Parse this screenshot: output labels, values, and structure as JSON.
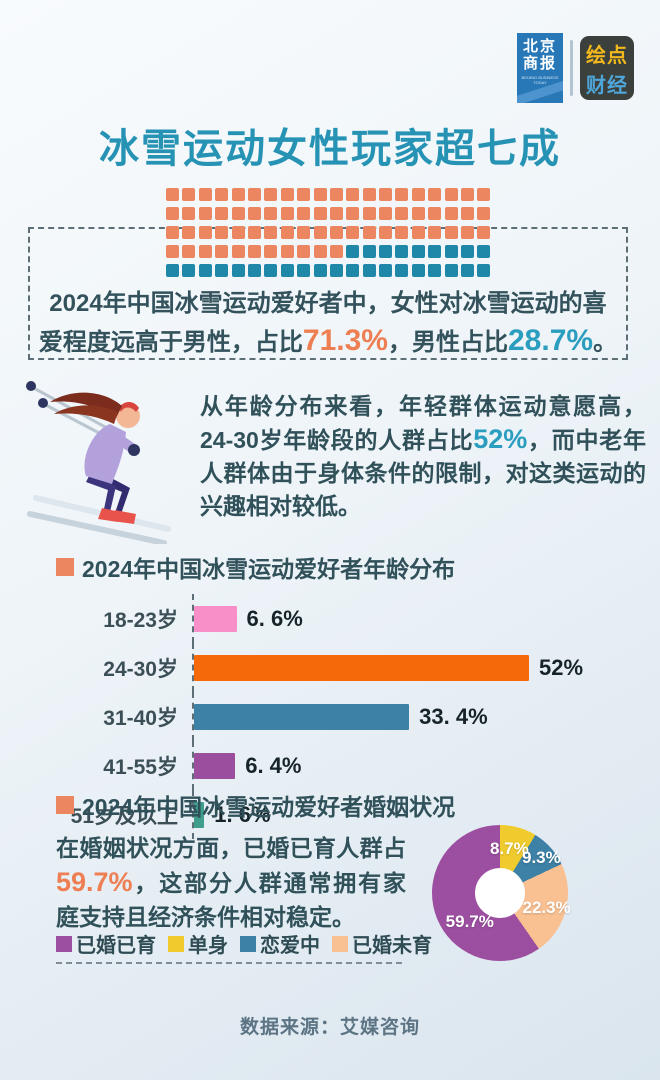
{
  "header": {
    "logo_beijing": {
      "line1": "北京",
      "line2": "商报",
      "caption": "BEIJING BUSINESS TODAY"
    },
    "logo_huidian": {
      "line1": "绘点",
      "line2": "财经"
    }
  },
  "title": "冰雪运动女性玩家超七成",
  "gender_section": {
    "line1": "2024年中国冰雪运动爱好者中，女性对冰雪运动的喜",
    "line2_pre": "爱程度远高于男性，占比",
    "female_value": "71.3%",
    "line2_mid": "，男性占比",
    "male_value": "28.7%",
    "line2_end": "。"
  },
  "age_section": {
    "para_pre": "从年龄分布来看，年轻群体运动意愿高，24-30岁年龄段的人群占比",
    "highlight": "52%",
    "para_post": "，而中老年人群体由于身体条件的限制，对这类运动的兴趣相对较低。"
  },
  "marriage_section": {
    "para_pre": "在婚姻状况方面，已婚已育人群占",
    "highlight": "59.7%",
    "para_post": "，这部分人群通常拥有家庭支持且经济条件相对稳定。",
    "legend": [
      {
        "label": "已婚已育",
        "color": "#9c4fa0"
      },
      {
        "label": "单身",
        "color": "#f0cb2d"
      },
      {
        "label": "恋爱中",
        "color": "#3e81a6"
      },
      {
        "label": "已婚未育",
        "color": "#f9c092"
      }
    ]
  },
  "footer": {
    "source": "数据来源：艾媒咨询"
  },
  "colors": {
    "title": "#2693b5",
    "accent_orange": "#ee7f53",
    "accent_teal": "#2b9ec0",
    "body_text": "#31515a",
    "waffle_female": "#ec8660",
    "waffle_male": "#1f87a8"
  },
  "chart_data": [
    {
      "type": "waffle",
      "grid": {
        "rows": 5,
        "cols": 20
      },
      "series": [
        {
          "name": "女性",
          "value": 71.3,
          "squares": 71,
          "color": "#ec8660"
        },
        {
          "name": "男性",
          "value": 28.7,
          "squares": 29,
          "color": "#1f87a8"
        }
      ]
    },
    {
      "type": "bar",
      "orientation": "horizontal",
      "title": "2024年中国冰雪运动爱好者年龄分布",
      "categories": [
        "18-23岁",
        "24-30岁",
        "31-40岁",
        "41-55岁",
        "51岁及以上"
      ],
      "values": [
        6.6,
        52,
        33.4,
        6.4,
        1.6
      ],
      "display_values": [
        "6. 6%",
        "52%",
        "33. 4%",
        "6. 4%",
        "1. 6%"
      ],
      "colors": [
        "#f98fc9",
        "#f5690b",
        "#3e81a6",
        "#9b4d9e",
        "#3f9e8c"
      ],
      "xlim": [
        0,
        57
      ],
      "value_labels": "outside-end",
      "grid_lines": "dashed-axis-only"
    },
    {
      "type": "pie",
      "subtype": "donut",
      "title": "2024年中国冰雪运动爱好者婚姻状况",
      "start_angle_deg": 0,
      "direction": "clockwise",
      "slices": [
        {
          "label": "单身",
          "value": 8.7,
          "display": "8.7%",
          "color": "#f0cb2d",
          "label_angle": 12,
          "label_r": 45
        },
        {
          "label": "恋爱中",
          "value": 9.3,
          "display": "9.3%",
          "color": "#3e81a6",
          "label_angle": 50,
          "label_r": 54
        },
        {
          "label": "已婚未育",
          "value": 22.3,
          "display": "22.3%",
          "color": "#f9c092",
          "label_angle": 108,
          "label_r": 49
        },
        {
          "label": "已婚已育",
          "value": 59.7,
          "display": "59.7%",
          "color": "#9c4fa0",
          "label_angle": 226,
          "label_r": 42
        }
      ],
      "legend_position": "left"
    }
  ]
}
